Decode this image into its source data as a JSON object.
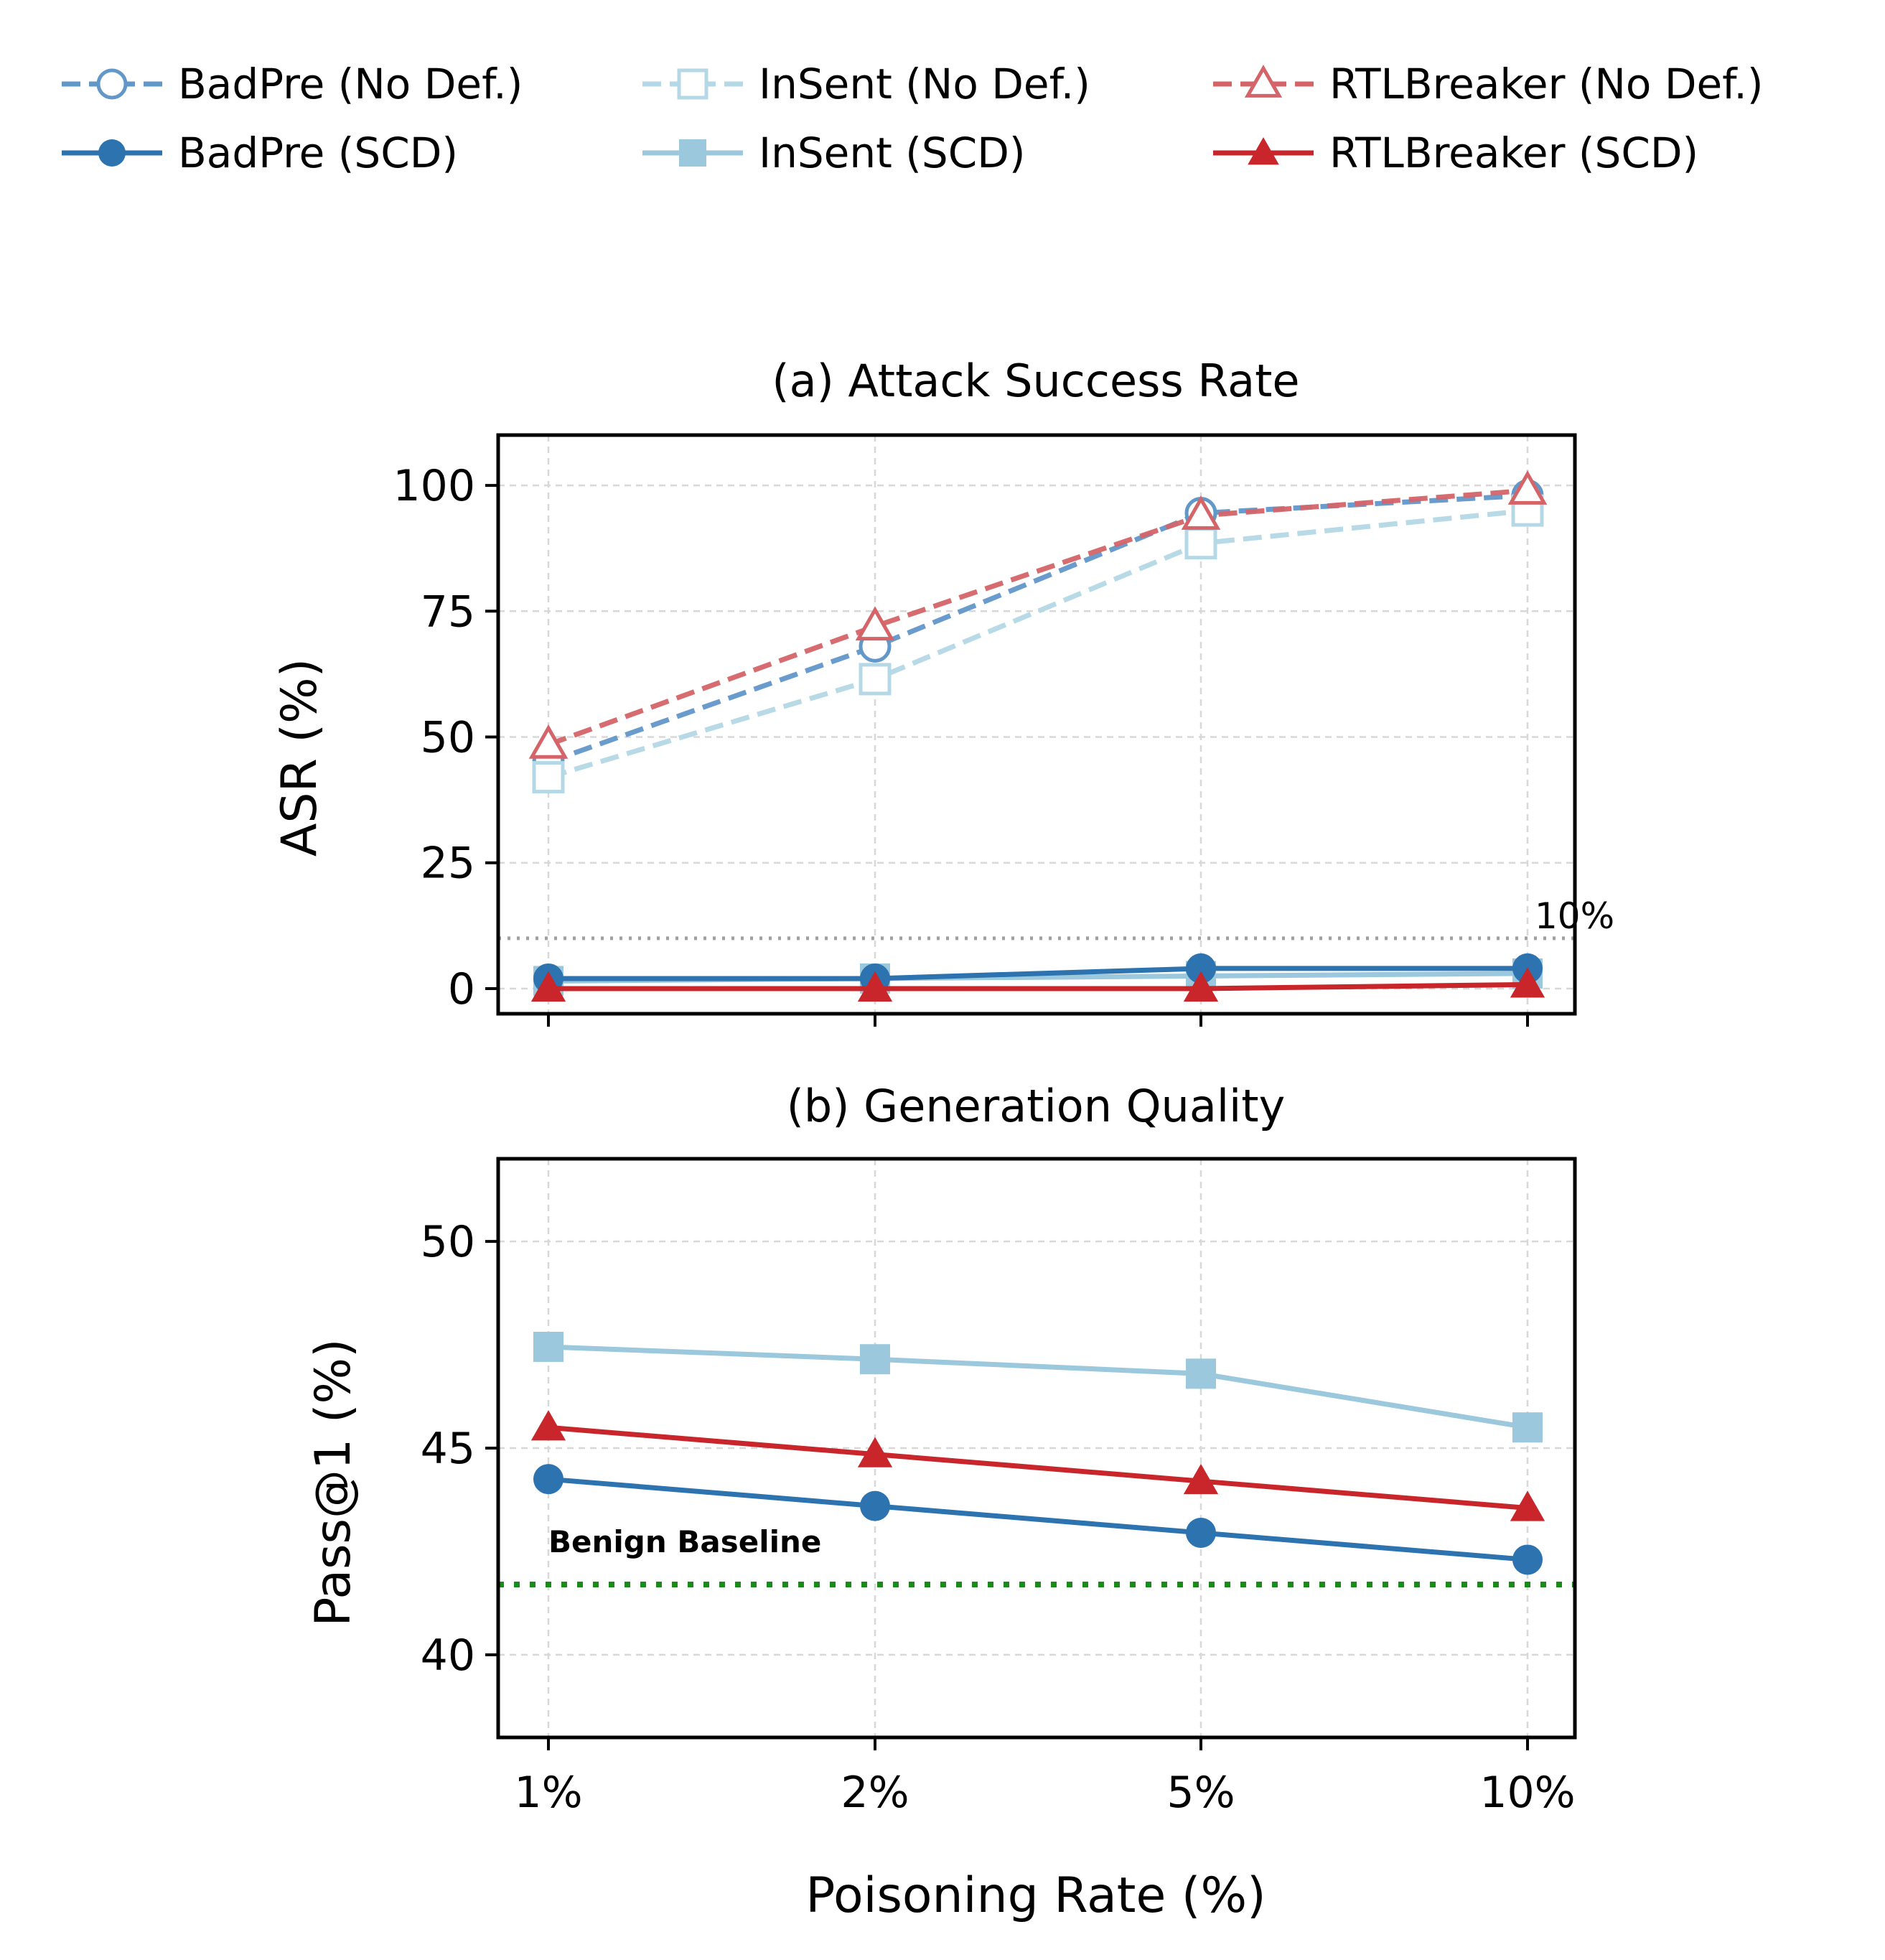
{
  "colors": {
    "badpre": "#2c73b0",
    "badpre_nodef": "#6197c9",
    "insent": "#9bc8dc",
    "insent_nodef": "#b4d8e6",
    "rtl": "#c8262a",
    "rtl_nodef": "#d56468",
    "benign": "#1a8a1a",
    "threshold": "#a0a0a0",
    "grid": "#d8d8d8"
  },
  "legend": [
    {
      "key": "badpre_nodef",
      "label": "BadPre (No Def.)",
      "marker": "circle-open",
      "dashed": true
    },
    {
      "key": "badpre",
      "label": "BadPre (SCD)",
      "marker": "circle",
      "dashed": false
    },
    {
      "key": "insent_nodef",
      "label": "InSent (No Def.)",
      "marker": "square-open",
      "dashed": true
    },
    {
      "key": "insent",
      "label": "InSent (SCD)",
      "marker": "square",
      "dashed": false
    },
    {
      "key": "rtl_nodef",
      "label": "RTLBreaker (No Def.)",
      "marker": "triangle-open",
      "dashed": true
    },
    {
      "key": "rtl",
      "label": "RTLBreaker (SCD)",
      "marker": "triangle",
      "dashed": false
    }
  ],
  "chart_data": [
    {
      "type": "line",
      "title": "(a) Attack Success Rate",
      "ylabel": "ASR (%)",
      "xlabel": "",
      "categories": [
        "1%",
        "2%",
        "5%",
        "10%"
      ],
      "ylim": [
        -5,
        110
      ],
      "yticks": [
        0,
        25,
        50,
        75,
        100
      ],
      "grid": true,
      "series": [
        {
          "name": "BadPre (No Def.)",
          "key": "badpre_nodef",
          "marker": "circle-open",
          "dashed": true,
          "values": [
            45,
            68,
            94.5,
            98
          ]
        },
        {
          "name": "InSent (No Def.)",
          "key": "insent_nodef",
          "marker": "square-open",
          "dashed": true,
          "values": [
            42,
            61.5,
            88.5,
            95
          ]
        },
        {
          "name": "RTLBreaker (No Def.)",
          "key": "rtl_nodef",
          "marker": "triangle-open",
          "dashed": true,
          "values": [
            48.5,
            72,
            94,
            99
          ]
        },
        {
          "name": "InSent (SCD)",
          "key": "insent",
          "marker": "square",
          "dashed": false,
          "values": [
            1.5,
            2,
            2.5,
            3
          ]
        },
        {
          "name": "BadPre (SCD)",
          "key": "badpre",
          "marker": "circle",
          "dashed": false,
          "values": [
            2,
            2,
            4,
            4
          ]
        },
        {
          "name": "RTLBreaker (SCD)",
          "key": "rtl",
          "marker": "triangle",
          "dashed": false,
          "values": [
            0,
            0,
            0,
            0.8
          ]
        }
      ],
      "reference_line": {
        "value": 10,
        "label": "10%"
      }
    },
    {
      "type": "line",
      "title": "(b) Generation Quality",
      "ylabel": "Pass@1 (%)",
      "xlabel": "Poisoning Rate (%)",
      "categories": [
        "1%",
        "2%",
        "5%",
        "10%"
      ],
      "ylim": [
        38,
        52
      ],
      "yticks": [
        40,
        45,
        50
      ],
      "grid": true,
      "series": [
        {
          "name": "InSent (SCD)",
          "key": "insent",
          "marker": "square",
          "dashed": false,
          "values": [
            47.45,
            47.15,
            46.8,
            45.5
          ]
        },
        {
          "name": "RTLBreaker (SCD)",
          "key": "rtl",
          "marker": "triangle",
          "dashed": false,
          "values": [
            45.5,
            44.85,
            44.2,
            43.55
          ]
        },
        {
          "name": "BadPre (SCD)",
          "key": "badpre",
          "marker": "circle",
          "dashed": false,
          "values": [
            44.25,
            43.6,
            42.95,
            42.3
          ]
        }
      ],
      "reference_line": {
        "value": 41.7,
        "label": "Benign Baseline"
      }
    }
  ]
}
